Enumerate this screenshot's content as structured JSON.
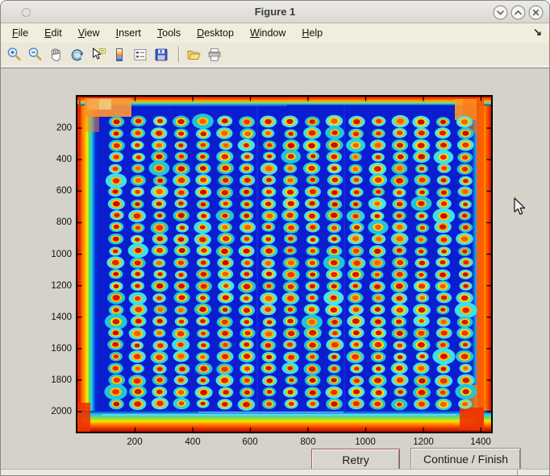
{
  "window": {
    "title": "Figure 1",
    "control_buttons": [
      {
        "id": "minimize"
      },
      {
        "id": "maximize"
      },
      {
        "id": "close"
      }
    ]
  },
  "menu_bar": {
    "items": [
      "File",
      "Edit",
      "View",
      "Insert",
      "Tools",
      "Desktop",
      "Window",
      "Help"
    ],
    "dock_arrow": "↘"
  },
  "toolbar": {
    "buttons": [
      "zoom-in",
      "zoom-out",
      "pan",
      "rotate-3d",
      "data-cursor",
      "insert-colorbar",
      "insert-legend",
      "save-figure",
      "open-file",
      "print-figure"
    ],
    "separator_after_index": 7
  },
  "buttons": {
    "retry": "Retry",
    "continue": "Continue / Finish"
  },
  "chart_data": {
    "type": "heatmap",
    "title": "",
    "xlabel": "",
    "ylabel": "",
    "x_ticks": [
      200,
      400,
      600,
      800,
      1000,
      1200,
      1400
    ],
    "y_ticks": [
      200,
      400,
      600,
      800,
      1000,
      1200,
      1400,
      1600,
      1800,
      2000
    ],
    "x_range": [
      0,
      1435
    ],
    "y_range": [
      0,
      2127
    ],
    "colormap": "jet",
    "grid_on": false,
    "description": "Microplate/microarray scan displayed with a jet colormap: a 17 x 25 grid of spots (red-hot cores with yellow rings and cyan halos) on a deep blue background, surrounded by hot red/orange edges along all four borders of the scanned plate.",
    "spot_grid": {
      "cols": 17,
      "rows": 25,
      "x_start": 134,
      "x_step": 75.7,
      "y_start": 158,
      "y_step": 74.7,
      "background": "#0b1ecf",
      "spot_colors": {
        "core": "#d81500",
        "ring": "#ffc800",
        "halo": "#2ad2e4"
      },
      "edge_color": "hot red/orange border"
    }
  },
  "colors": {
    "titlebar_bg": "#e7e5e2",
    "menubar_bg": "#f1eede",
    "toolbar_bg": "#ebe8d9",
    "canvas_bg": "#d5d2c9",
    "button_bg": "#d8d5cd",
    "focus_ring": "#a05a78",
    "axes_border": "#000000"
  }
}
